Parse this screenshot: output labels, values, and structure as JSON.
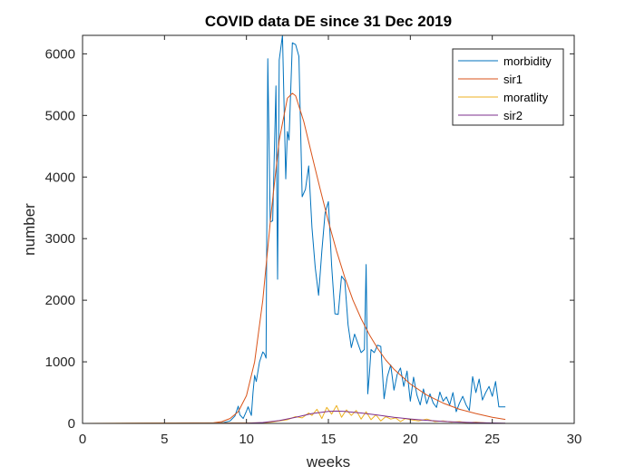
{
  "chart_data": {
    "type": "line",
    "title": "COVID data DE since 31 Dec 2019",
    "xlabel": "weeks",
    "ylabel": "number",
    "xlim": [
      0,
      30
    ],
    "ylim": [
      0,
      6300
    ],
    "xticks": [
      0,
      5,
      10,
      15,
      20,
      25,
      30
    ],
    "yticks": [
      0,
      1000,
      2000,
      3000,
      4000,
      5000,
      6000
    ],
    "grid": false,
    "legend_position": "top-right",
    "series": [
      {
        "name": "morbidity",
        "color": "#0072BD",
        "x": [
          0,
          8.0,
          8.6,
          9.0,
          9.3,
          9.5,
          9.6,
          9.8,
          10.0,
          10.1,
          10.3,
          10.4,
          10.5,
          10.6,
          10.8,
          11.0,
          11.1,
          11.2,
          11.3,
          11.45,
          11.6,
          11.8,
          11.9,
          12.0,
          12.2,
          12.4,
          12.5,
          12.6,
          12.8,
          13.0,
          13.2,
          13.4,
          13.6,
          13.8,
          14.0,
          14.2,
          14.4,
          14.6,
          14.8,
          15.0,
          15.2,
          15.4,
          15.6,
          15.8,
          16.0,
          16.2,
          16.4,
          16.6,
          16.8,
          17.0,
          17.2,
          17.3,
          17.4,
          17.5,
          17.6,
          17.8,
          18.0,
          18.2,
          18.4,
          18.6,
          18.8,
          19.0,
          19.2,
          19.4,
          19.6,
          19.8,
          20.0,
          20.2,
          20.4,
          20.6,
          20.8,
          21.0,
          21.2,
          21.4,
          21.6,
          21.8,
          22.0,
          22.2,
          22.4,
          22.6,
          22.8,
          23.0,
          23.2,
          23.4,
          23.6,
          23.8,
          24.0,
          24.2,
          24.4,
          24.6,
          24.8,
          25.0,
          25.2,
          25.4,
          25.6,
          25.8
        ],
        "y": [
          0,
          0,
          15,
          40,
          120,
          280,
          140,
          80,
          200,
          270,
          130,
          500,
          780,
          680,
          1000,
          1160,
          1130,
          1060,
          5920,
          3270,
          3290,
          5480,
          2340,
          5900,
          6300,
          3970,
          4740,
          4600,
          6180,
          6150,
          5960,
          3680,
          3800,
          4180,
          3180,
          2530,
          2080,
          2800,
          3420,
          3600,
          2560,
          1780,
          1770,
          2390,
          2320,
          1600,
          1230,
          1450,
          1300,
          1150,
          1200,
          2580,
          480,
          800,
          1200,
          1150,
          1270,
          1250,
          400,
          760,
          950,
          540,
          800,
          900,
          600,
          850,
          360,
          750,
          460,
          300,
          560,
          320,
          480,
          330,
          260,
          510,
          360,
          430,
          300,
          500,
          190,
          330,
          440,
          300,
          210,
          760,
          500,
          720,
          380,
          500,
          600,
          440,
          680,
          270,
          270,
          270
        ]
      },
      {
        "name": "sir1",
        "color": "#D95319",
        "x": [
          0,
          8.0,
          8.5,
          9.0,
          9.5,
          10.0,
          10.5,
          11.0,
          11.5,
          12.0,
          12.5,
          12.8,
          13.0,
          13.5,
          14.0,
          14.5,
          15.0,
          15.5,
          16.0,
          16.5,
          17.0,
          17.5,
          18.0,
          18.5,
          19.0,
          20.0,
          21.0,
          22.0,
          23.0,
          24.0,
          25.0,
          25.8
        ],
        "y": [
          0,
          10,
          30,
          80,
          190,
          450,
          1000,
          2000,
          3400,
          4600,
          5280,
          5360,
          5320,
          4900,
          4350,
          3800,
          3280,
          2800,
          2370,
          2000,
          1700,
          1440,
          1220,
          1030,
          880,
          640,
          460,
          330,
          230,
          160,
          100,
          65
        ]
      },
      {
        "name": "moratlity",
        "color": "#EDB120",
        "x": [
          0,
          11.0,
          11.5,
          12.0,
          12.5,
          13.0,
          13.4,
          13.8,
          14.0,
          14.3,
          14.6,
          14.9,
          15.2,
          15.5,
          15.8,
          16.1,
          16.4,
          16.7,
          17.0,
          17.3,
          17.6,
          17.9,
          18.2,
          18.5,
          18.8,
          19.1,
          19.4,
          19.7,
          20.0,
          20.5,
          21.0,
          21.5,
          22.0,
          22.5,
          23.0,
          23.5,
          24.0,
          25.0
        ],
        "y": [
          0,
          10,
          20,
          40,
          60,
          110,
          90,
          170,
          130,
          230,
          80,
          260,
          150,
          290,
          100,
          220,
          130,
          210,
          70,
          190,
          60,
          140,
          40,
          110,
          70,
          90,
          30,
          80,
          60,
          40,
          70,
          30,
          40,
          20,
          30,
          10,
          20,
          0
        ]
      },
      {
        "name": "sir2",
        "color": "#7E2F8E",
        "x": [
          0,
          10.0,
          11.0,
          12.0,
          13.0,
          14.0,
          15.0,
          15.5,
          16.0,
          17.0,
          18.0,
          19.0,
          20.0,
          21.0,
          22.0,
          23.0,
          24.0,
          25.0,
          25.8
        ],
        "y": [
          0,
          5,
          15,
          45,
          100,
          160,
          195,
          200,
          195,
          170,
          135,
          100,
          72,
          50,
          33,
          21,
          13,
          8,
          5
        ]
      }
    ]
  }
}
